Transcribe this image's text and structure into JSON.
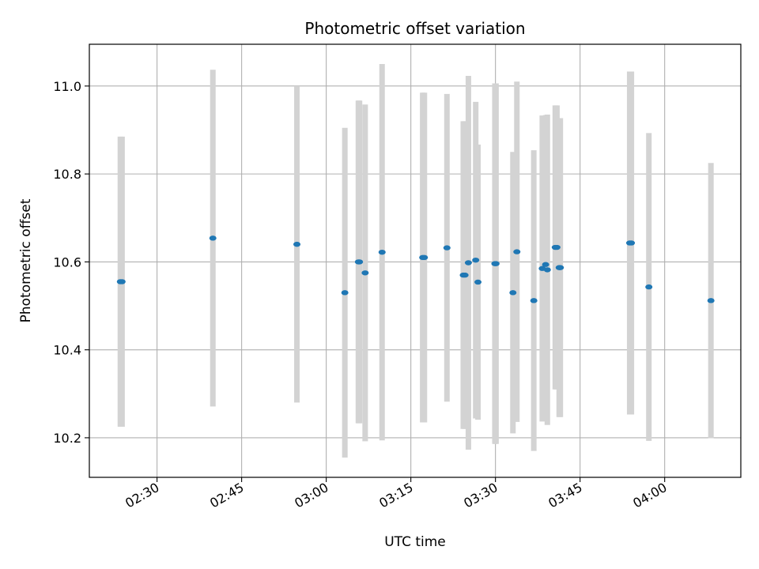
{
  "chart_data": {
    "type": "scatter",
    "title": "Photometric offset variation",
    "xlabel": "UTC time",
    "ylabel": "Photometric offset",
    "x_axis_type": "time",
    "xlim": [
      "02:18:00",
      "04:13:30"
    ],
    "ylim": [
      10.11,
      11.095
    ],
    "x_ticks": [
      "02:30",
      "02:45",
      "03:00",
      "03:15",
      "03:30",
      "03:45",
      "04:00"
    ],
    "y_ticks": [
      10.2,
      10.4,
      10.6,
      10.8,
      11.0
    ],
    "y_tick_labels": [
      "10.2",
      "10.4",
      "10.6",
      "10.8",
      "11.0"
    ],
    "grid": true,
    "point_color": "#1f77b4",
    "errorbar_color": "#d3d3d3",
    "points": [
      {
        "x": "02:23:30",
        "y": 10.555,
        "yerr": 0.33
      },
      {
        "x": "02:23:48",
        "y": 10.555,
        "yerr": 0.33
      },
      {
        "x": "02:39:54",
        "y": 10.654,
        "yerr": 0.383
      },
      {
        "x": "02:54:48",
        "y": 10.64,
        "yerr": 0.36
      },
      {
        "x": "03:03:18",
        "y": 10.53,
        "yerr": 0.375
      },
      {
        "x": "03:05:42",
        "y": 10.6,
        "yerr": 0.367
      },
      {
        "x": "03:05:54",
        "y": 10.6,
        "yerr": 0.367
      },
      {
        "x": "03:06:54",
        "y": 10.575,
        "yerr": 0.383
      },
      {
        "x": "03:09:54",
        "y": 10.622,
        "yerr": 0.428
      },
      {
        "x": "03:17:06",
        "y": 10.61,
        "yerr": 0.375
      },
      {
        "x": "03:17:24",
        "y": 10.61,
        "yerr": 0.375
      },
      {
        "x": "03:21:24",
        "y": 10.632,
        "yerr": 0.35
      },
      {
        "x": "03:24:18",
        "y": 10.57,
        "yerr": 0.35
      },
      {
        "x": "03:24:36",
        "y": 10.57,
        "yerr": 0.35
      },
      {
        "x": "03:25:12",
        "y": 10.598,
        "yerr": 0.425
      },
      {
        "x": "03:26:30",
        "y": 10.604,
        "yerr": 0.36
      },
      {
        "x": "03:26:54",
        "y": 10.554,
        "yerr": 0.313
      },
      {
        "x": "03:29:54",
        "y": 10.596,
        "yerr": 0.41
      },
      {
        "x": "03:30:06",
        "y": 10.596,
        "yerr": 0.41
      },
      {
        "x": "03:33:06",
        "y": 10.53,
        "yerr": 0.32
      },
      {
        "x": "03:33:48",
        "y": 10.623,
        "yerr": 0.387
      },
      {
        "x": "03:36:48",
        "y": 10.512,
        "yerr": 0.342
      },
      {
        "x": "03:38:18",
        "y": 10.585,
        "yerr": 0.348
      },
      {
        "x": "03:38:54",
        "y": 10.594,
        "yerr": 0.34
      },
      {
        "x": "03:39:12",
        "y": 10.582,
        "yerr": 0.353
      },
      {
        "x": "03:40:36",
        "y": 10.633,
        "yerr": 0.323
      },
      {
        "x": "03:40:54",
        "y": 10.633,
        "yerr": 0.323
      },
      {
        "x": "03:41:18",
        "y": 10.587,
        "yerr": 0.34
      },
      {
        "x": "03:41:30",
        "y": 10.587,
        "yerr": 0.34
      },
      {
        "x": "03:53:48",
        "y": 10.643,
        "yerr": 0.39
      },
      {
        "x": "03:54:06",
        "y": 10.643,
        "yerr": 0.39
      },
      {
        "x": "03:57:12",
        "y": 10.543,
        "yerr": 0.35
      },
      {
        "x": "04:08:12",
        "y": 10.512,
        "yerr": 0.313
      }
    ]
  }
}
